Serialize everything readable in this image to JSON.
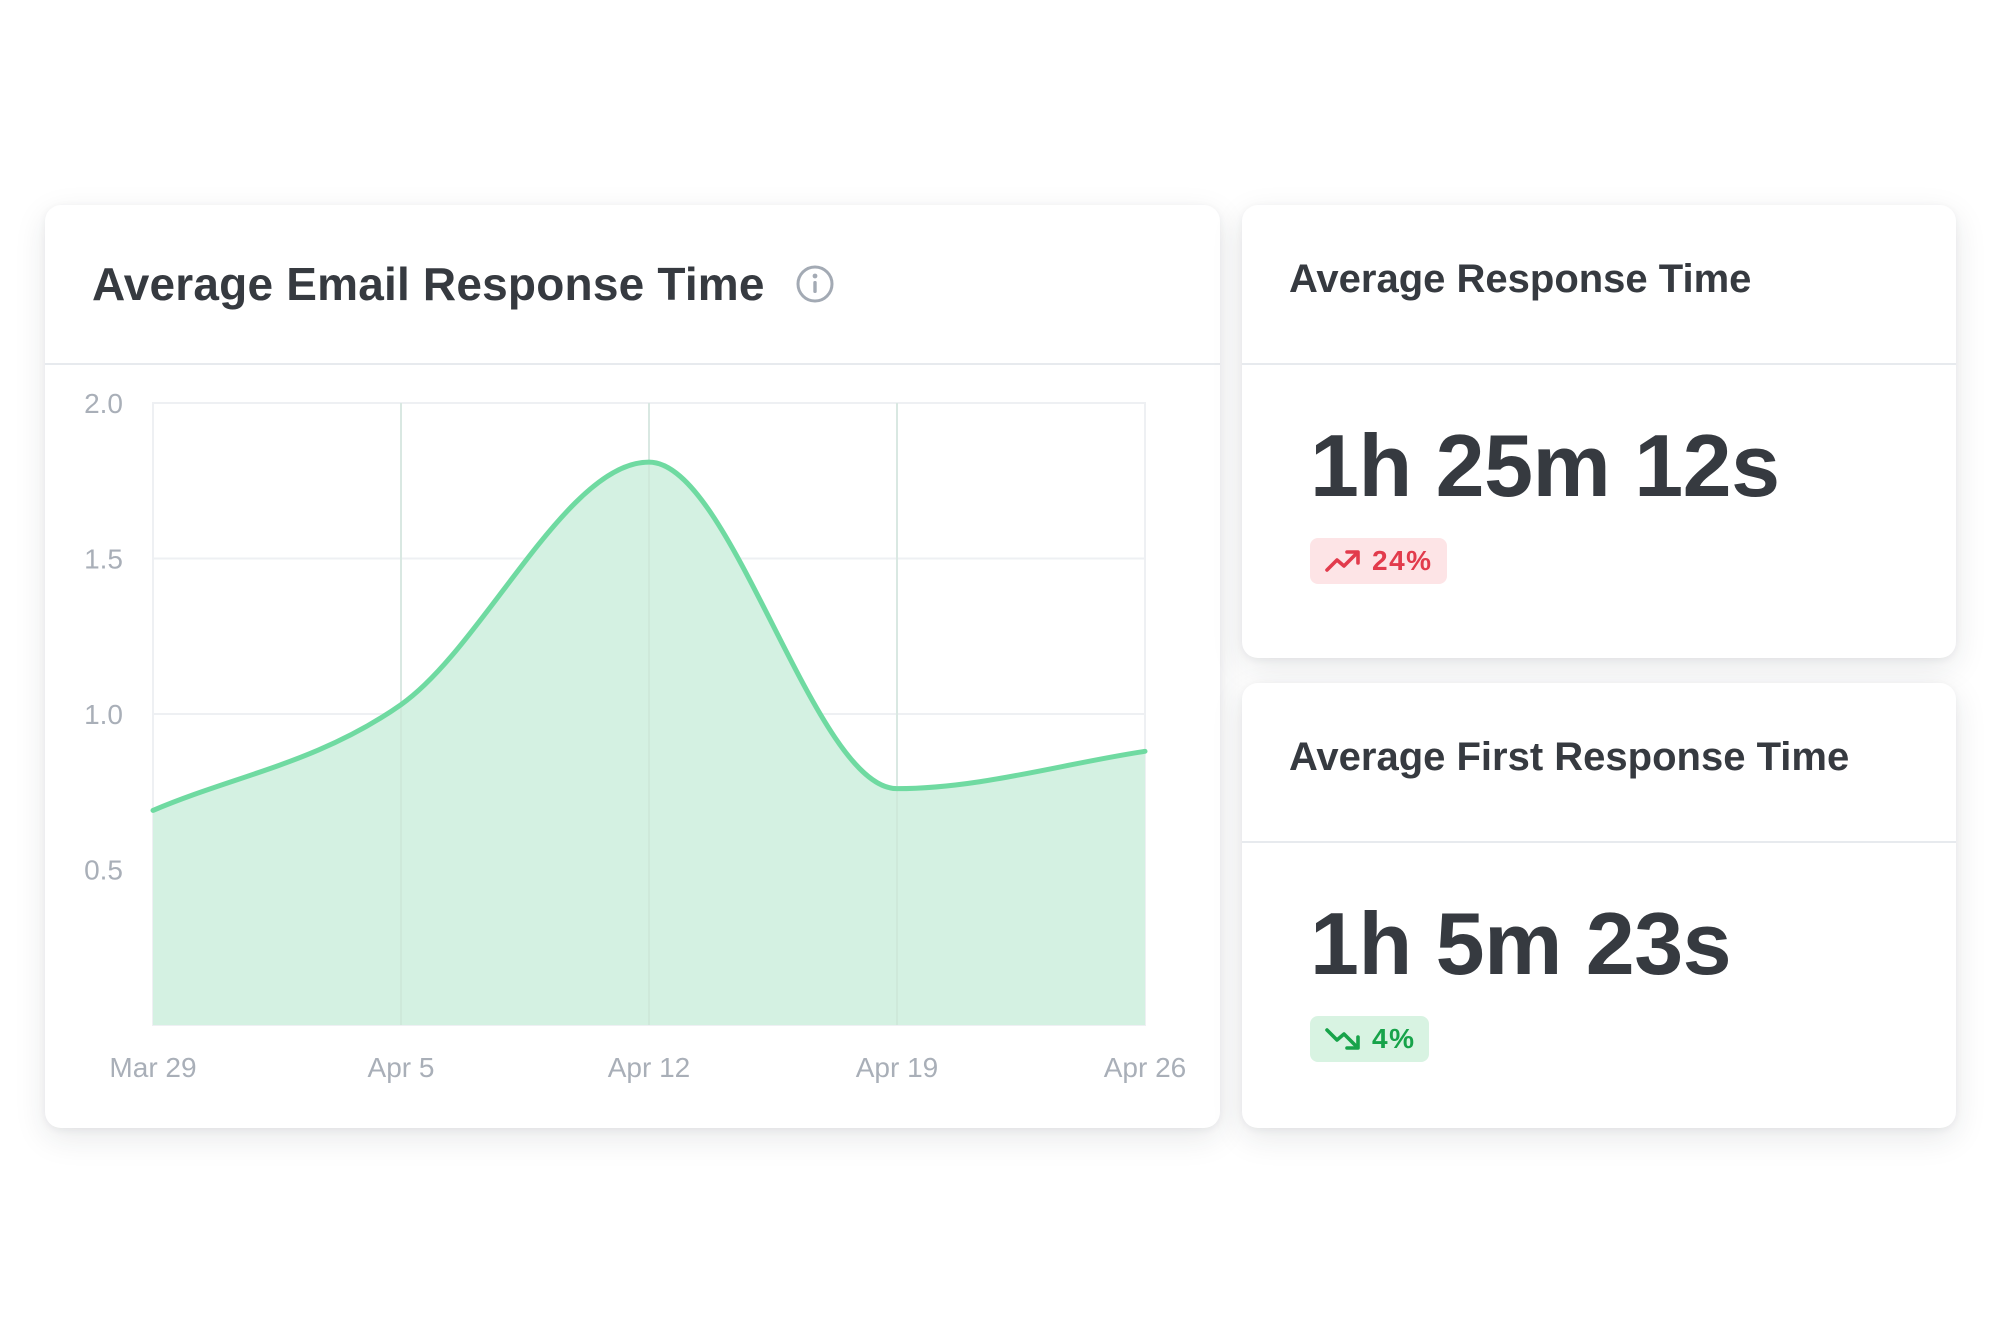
{
  "chart_card": {
    "title": "Average Email Response Time",
    "info_icon": "info-circle-icon"
  },
  "chart_data": {
    "type": "area",
    "x": [
      "Mar 29",
      "Apr 5",
      "Apr 12",
      "Apr 19",
      "Apr 26"
    ],
    "values": [
      0.69,
      1.03,
      1.81,
      0.76,
      0.88
    ],
    "yticks": [
      "2.0",
      "1.5",
      "1.0",
      "0.5"
    ],
    "ytick_values": [
      2.0,
      1.5,
      1.0,
      0.5
    ],
    "ylim": [
      0,
      2.0
    ],
    "xlabel": "",
    "ylabel": "",
    "grid": true,
    "line_color": "#6fdaa1",
    "fill_color": "#d4f1e2",
    "curve": "smooth"
  },
  "stats": [
    {
      "title": "Average Response Time",
      "value": "1h 25m 12s",
      "change": "24%",
      "direction": "up",
      "icon": "trend-up-icon",
      "color": "#e23b4c",
      "background": "#fde4e6"
    },
    {
      "title": "Average First Response Time",
      "value": "1h 5m 23s",
      "change": "4%",
      "direction": "down",
      "icon": "trend-down-icon",
      "color": "#17a34a",
      "background": "#d8f3e2"
    }
  ]
}
